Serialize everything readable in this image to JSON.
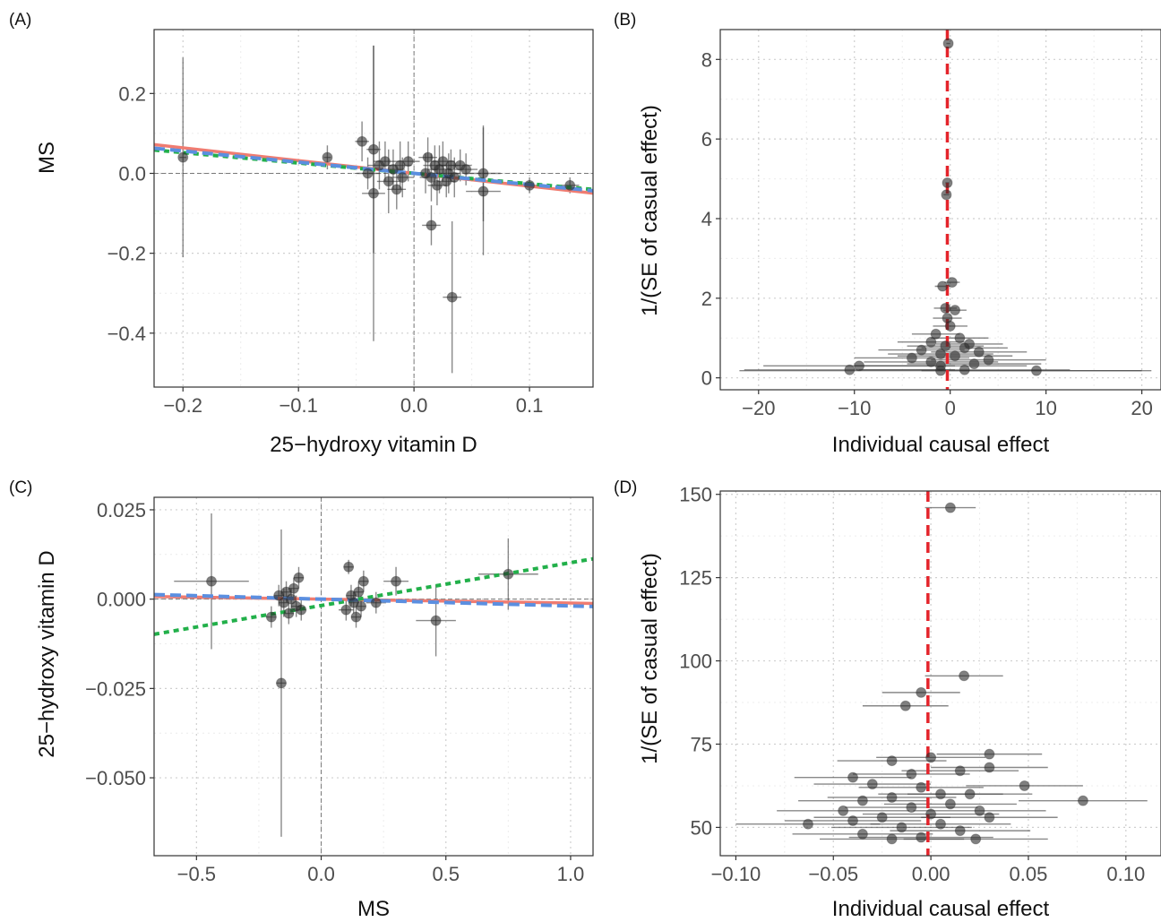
{
  "chart_data": [
    {
      "panel": "(A)",
      "type": "scatter",
      "xlabel": "25−hydroxy vitamin D",
      "ylabel": "MS",
      "xlim": [
        -0.225,
        0.155
      ],
      "ylim": [
        -0.535,
        0.36
      ],
      "xticks": [
        -0.2,
        -0.1,
        0.0,
        0.1
      ],
      "xtick_labels": [
        "−0.2",
        "−0.1",
        "0.0",
        "0.1"
      ],
      "yticks": [
        -0.4,
        -0.2,
        0.0,
        0.2
      ],
      "ytick_labels": [
        "−0.4",
        "−0.2",
        "0.0",
        "0.2"
      ],
      "grid": true,
      "zero_lines": true,
      "lines": [
        {
          "color": "#f07c71",
          "dash": "solid",
          "slope": -0.32
        },
        {
          "color": "#22b04a",
          "dash": "dotted",
          "slope": -0.26
        },
        {
          "color": "#5b8fe0",
          "dash": "dashed",
          "slope": -0.28
        }
      ],
      "points": [
        {
          "x": -0.2,
          "y": 0.04,
          "xerr": 0.003,
          "yerr": 0.25
        },
        {
          "x": -0.075,
          "y": 0.04,
          "xerr": 0.003,
          "yerr": 0.03
        },
        {
          "x": -0.045,
          "y": 0.08,
          "xerr": 0.006,
          "yerr": 0.05
        },
        {
          "x": -0.04,
          "y": 0.0,
          "xerr": 0.01,
          "yerr": 0.04
        },
        {
          "x": -0.035,
          "y": -0.05,
          "xerr": 0.01,
          "yerr": 0.37
        },
        {
          "x": -0.035,
          "y": 0.06,
          "xerr": 0.006,
          "yerr": 0.26
        },
        {
          "x": -0.03,
          "y": 0.02,
          "xerr": 0.01,
          "yerr": 0.06
        },
        {
          "x": -0.025,
          "y": 0.03,
          "xerr": 0.01,
          "yerr": 0.05
        },
        {
          "x": -0.022,
          "y": -0.02,
          "xerr": 0.01,
          "yerr": 0.08
        },
        {
          "x": -0.018,
          "y": 0.01,
          "xerr": 0.01,
          "yerr": 0.05
        },
        {
          "x": -0.015,
          "y": -0.04,
          "xerr": 0.008,
          "yerr": 0.05
        },
        {
          "x": -0.012,
          "y": 0.02,
          "xerr": 0.01,
          "yerr": 0.06
        },
        {
          "x": -0.01,
          "y": -0.01,
          "xerr": 0.01,
          "yerr": 0.05
        },
        {
          "x": -0.005,
          "y": 0.03,
          "xerr": 0.01,
          "yerr": 0.05
        },
        {
          "x": 0.01,
          "y": 0.0,
          "xerr": 0.01,
          "yerr": 0.05
        },
        {
          "x": 0.012,
          "y": 0.04,
          "xerr": 0.008,
          "yerr": 0.05
        },
        {
          "x": 0.015,
          "y": -0.01,
          "xerr": 0.01,
          "yerr": 0.06
        },
        {
          "x": 0.018,
          "y": 0.02,
          "xerr": 0.01,
          "yerr": 0.05
        },
        {
          "x": 0.02,
          "y": -0.03,
          "xerr": 0.008,
          "yerr": 0.05
        },
        {
          "x": 0.022,
          "y": 0.01,
          "xerr": 0.01,
          "yerr": 0.06
        },
        {
          "x": 0.025,
          "y": 0.03,
          "xerr": 0.01,
          "yerr": 0.05
        },
        {
          "x": 0.028,
          "y": -0.02,
          "xerr": 0.008,
          "yerr": 0.04
        },
        {
          "x": 0.03,
          "y": 0.0,
          "xerr": 0.01,
          "yerr": 0.05
        },
        {
          "x": 0.032,
          "y": 0.02,
          "xerr": 0.008,
          "yerr": 0.04
        },
        {
          "x": 0.033,
          "y": -0.31,
          "xerr": 0.008,
          "yerr": 0.19
        },
        {
          "x": 0.035,
          "y": -0.01,
          "xerr": 0.01,
          "yerr": 0.05
        },
        {
          "x": 0.04,
          "y": 0.02,
          "xerr": 0.01,
          "yerr": 0.04
        },
        {
          "x": 0.045,
          "y": 0.01,
          "xerr": 0.01,
          "yerr": 0.04
        },
        {
          "x": 0.015,
          "y": -0.13,
          "xerr": 0.008,
          "yerr": 0.05
        },
        {
          "x": 0.06,
          "y": 0.0,
          "xerr": 0.015,
          "yerr": 0.12
        },
        {
          "x": 0.06,
          "y": -0.045,
          "xerr": 0.015,
          "yerr": 0.16
        },
        {
          "x": 0.1,
          "y": -0.03,
          "xerr": 0.008,
          "yerr": 0.02
        },
        {
          "x": 0.135,
          "y": -0.03,
          "xerr": 0.008,
          "yerr": 0.02
        }
      ]
    },
    {
      "panel": "(B)",
      "type": "scatter",
      "xlabel": "Individual causal effect",
      "ylabel": "1/(SE of casual effect)",
      "xlim": [
        -24,
        22
      ],
      "ylim": [
        -0.3,
        8.75
      ],
      "xticks": [
        -20,
        -10,
        0,
        10,
        20
      ],
      "xtick_labels": [
        "−20",
        "−10",
        "0",
        "10",
        "20"
      ],
      "yticks": [
        0,
        2,
        4,
        6,
        8
      ],
      "ytick_labels": [
        "0",
        "2",
        "4",
        "6",
        "8"
      ],
      "grid": true,
      "vline": {
        "x": -0.3,
        "color": "#e4242b",
        "dash": "dashed"
      },
      "points": [
        {
          "x": -0.2,
          "y": 8.4,
          "xerr": 0.2
        },
        {
          "x": -0.3,
          "y": 4.9,
          "xerr": 0.2
        },
        {
          "x": -0.4,
          "y": 4.6,
          "xerr": 0.3
        },
        {
          "x": 0.2,
          "y": 2.4,
          "xerr": 0.8
        },
        {
          "x": -0.8,
          "y": 2.3,
          "xerr": 0.8
        },
        {
          "x": -0.5,
          "y": 1.75,
          "xerr": 1.2
        },
        {
          "x": 0.5,
          "y": 1.7,
          "xerr": 1.2
        },
        {
          "x": -0.3,
          "y": 1.5,
          "xerr": 1.5
        },
        {
          "x": 0.0,
          "y": 1.3,
          "xerr": 1.8
        },
        {
          "x": -1.5,
          "y": 1.1,
          "xerr": 2.5
        },
        {
          "x": 1.0,
          "y": 1.0,
          "xerr": 3.0
        },
        {
          "x": -2.0,
          "y": 0.9,
          "xerr": 3.5
        },
        {
          "x": 2.0,
          "y": 0.85,
          "xerr": 3.5
        },
        {
          "x": -0.5,
          "y": 0.8,
          "xerr": 4.0
        },
        {
          "x": 1.5,
          "y": 0.75,
          "xerr": 4.5
        },
        {
          "x": -3.0,
          "y": 0.7,
          "xerr": 4.5
        },
        {
          "x": 3.0,
          "y": 0.65,
          "xerr": 5.0
        },
        {
          "x": -1.0,
          "y": 0.6,
          "xerr": 5.5
        },
        {
          "x": 0.5,
          "y": 0.55,
          "xerr": 6.0
        },
        {
          "x": -4.0,
          "y": 0.5,
          "xerr": 6.0
        },
        {
          "x": 4.0,
          "y": 0.45,
          "xerr": 6.0
        },
        {
          "x": -2.0,
          "y": 0.4,
          "xerr": 7.0
        },
        {
          "x": 2.5,
          "y": 0.35,
          "xerr": 7.0
        },
        {
          "x": -1.0,
          "y": 0.3,
          "xerr": 9.0
        },
        {
          "x": -9.5,
          "y": 0.3,
          "xerr": 10.0
        },
        {
          "x": -10.5,
          "y": 0.2,
          "xerr": 11.0
        },
        {
          "x": 1.5,
          "y": 0.2,
          "xerr": 11.0
        },
        {
          "x": 9.0,
          "y": 0.18,
          "xerr": 12.0
        },
        {
          "x": -1.0,
          "y": 0.18,
          "xerr": 21.0
        }
      ]
    },
    {
      "panel": "(C)",
      "type": "scatter",
      "xlabel": "MS",
      "ylabel": "25−hydroxy vitamin D",
      "xlim": [
        -0.67,
        1.09
      ],
      "ylim": [
        -0.0718,
        0.0285
      ],
      "xticks": [
        -0.5,
        0.0,
        0.5,
        1.0
      ],
      "xtick_labels": [
        "−0.5",
        "0.0",
        "0.5",
        "1.0"
      ],
      "yticks": [
        -0.05,
        -0.025,
        0.0,
        0.025
      ],
      "ytick_labels": [
        "−0.050",
        "−0.025",
        "0.000",
        "0.025"
      ],
      "grid": true,
      "zero_lines": true,
      "lines": [
        {
          "color": "#f07c71",
          "dash": "solid",
          "slope": -0.0011,
          "intercept": 0.0
        },
        {
          "color": "#22b04a",
          "dash": "dotted",
          "slope": 0.012,
          "intercept": -0.0018
        },
        {
          "color": "#5b8fe0",
          "dash": "dashed",
          "slope": -0.0019,
          "intercept": 0.0
        }
      ],
      "points": [
        {
          "x": -0.44,
          "y": 0.005,
          "xerr": 0.15,
          "yerr": 0.019
        },
        {
          "x": -0.2,
          "y": -0.005,
          "xerr": 0.02,
          "yerr": 0.003
        },
        {
          "x": -0.17,
          "y": 0.001,
          "xerr": 0.02,
          "yerr": 0.003
        },
        {
          "x": -0.16,
          "y": -0.0235,
          "xerr": 0.02,
          "yerr": 0.043
        },
        {
          "x": -0.15,
          "y": -0.001,
          "xerr": 0.02,
          "yerr": 0.004
        },
        {
          "x": -0.14,
          "y": 0.002,
          "xerr": 0.02,
          "yerr": 0.003
        },
        {
          "x": -0.13,
          "y": -0.004,
          "xerr": 0.02,
          "yerr": 0.003
        },
        {
          "x": -0.12,
          "y": 0.0,
          "xerr": 0.02,
          "yerr": 0.003
        },
        {
          "x": -0.11,
          "y": 0.003,
          "xerr": 0.02,
          "yerr": 0.003
        },
        {
          "x": -0.1,
          "y": -0.002,
          "xerr": 0.02,
          "yerr": 0.003
        },
        {
          "x": -0.09,
          "y": 0.006,
          "xerr": 0.02,
          "yerr": 0.003
        },
        {
          "x": -0.08,
          "y": -0.003,
          "xerr": 0.02,
          "yerr": 0.003
        },
        {
          "x": 0.1,
          "y": -0.003,
          "xerr": 0.03,
          "yerr": 0.003
        },
        {
          "x": 0.11,
          "y": 0.009,
          "xerr": 0.02,
          "yerr": 0.002
        },
        {
          "x": 0.12,
          "y": 0.001,
          "xerr": 0.02,
          "yerr": 0.003
        },
        {
          "x": 0.13,
          "y": -0.001,
          "xerr": 0.02,
          "yerr": 0.003
        },
        {
          "x": 0.14,
          "y": -0.005,
          "xerr": 0.02,
          "yerr": 0.003
        },
        {
          "x": 0.15,
          "y": 0.002,
          "xerr": 0.02,
          "yerr": 0.003
        },
        {
          "x": 0.16,
          "y": -0.002,
          "xerr": 0.02,
          "yerr": 0.003
        },
        {
          "x": 0.17,
          "y": 0.005,
          "xerr": 0.02,
          "yerr": 0.003
        },
        {
          "x": 0.22,
          "y": -0.001,
          "xerr": 0.04,
          "yerr": 0.003
        },
        {
          "x": 0.3,
          "y": 0.005,
          "xerr": 0.05,
          "yerr": 0.004
        },
        {
          "x": 0.46,
          "y": -0.006,
          "xerr": 0.08,
          "yerr": 0.01
        },
        {
          "x": 0.75,
          "y": 0.007,
          "xerr": 0.12,
          "yerr": 0.01
        }
      ]
    },
    {
      "panel": "(D)",
      "type": "scatter",
      "xlabel": "Individual causal effect",
      "ylabel": "1/(SE of casual effect)",
      "xlim": [
        -0.108,
        0.118
      ],
      "ylim": [
        41.5,
        151
      ],
      "xticks": [
        -0.1,
        -0.05,
        0.0,
        0.05,
        0.1
      ],
      "xtick_labels": [
        "−0.10",
        "−0.05",
        "0.00",
        "0.05",
        "0.10"
      ],
      "yticks": [
        50,
        75,
        100,
        125,
        150
      ],
      "ytick_labels": [
        "50",
        "75",
        "100",
        "125",
        "150"
      ],
      "grid": true,
      "vline": {
        "x": -0.0015,
        "color": "#e4242b",
        "dash": "dashed"
      },
      "points": [
        {
          "x": 0.01,
          "y": 146,
          "xerr": 0.013
        },
        {
          "x": 0.017,
          "y": 95.5,
          "xerr": 0.02
        },
        {
          "x": -0.005,
          "y": 90.5,
          "xerr": 0.02
        },
        {
          "x": -0.013,
          "y": 86.5,
          "xerr": 0.022
        },
        {
          "x": 0.03,
          "y": 72,
          "xerr": 0.027
        },
        {
          "x": 0.0,
          "y": 71,
          "xerr": 0.028
        },
        {
          "x": -0.02,
          "y": 70,
          "xerr": 0.028
        },
        {
          "x": 0.015,
          "y": 67,
          "xerr": 0.03
        },
        {
          "x": 0.03,
          "y": 68,
          "xerr": 0.03
        },
        {
          "x": -0.04,
          "y": 65,
          "xerr": 0.03
        },
        {
          "x": -0.01,
          "y": 66,
          "xerr": 0.03
        },
        {
          "x": 0.048,
          "y": 62.5,
          "xerr": 0.03
        },
        {
          "x": -0.03,
          "y": 63,
          "xerr": 0.03
        },
        {
          "x": -0.005,
          "y": 62,
          "xerr": 0.032
        },
        {
          "x": 0.005,
          "y": 60,
          "xerr": 0.032
        },
        {
          "x": 0.02,
          "y": 60,
          "xerr": 0.032
        },
        {
          "x": -0.02,
          "y": 59,
          "xerr": 0.033
        },
        {
          "x": 0.078,
          "y": 58,
          "xerr": 0.033
        },
        {
          "x": -0.035,
          "y": 58,
          "xerr": 0.033
        },
        {
          "x": 0.01,
          "y": 57,
          "xerr": 0.034
        },
        {
          "x": -0.01,
          "y": 56,
          "xerr": 0.034
        },
        {
          "x": -0.045,
          "y": 55,
          "xerr": 0.034
        },
        {
          "x": 0.025,
          "y": 55,
          "xerr": 0.034
        },
        {
          "x": 0.0,
          "y": 54,
          "xerr": 0.035
        },
        {
          "x": -0.025,
          "y": 53,
          "xerr": 0.035
        },
        {
          "x": 0.03,
          "y": 53,
          "xerr": 0.035
        },
        {
          "x": -0.04,
          "y": 52,
          "xerr": 0.035
        },
        {
          "x": -0.063,
          "y": 51,
          "xerr": 0.037
        },
        {
          "x": 0.005,
          "y": 51,
          "xerr": 0.036
        },
        {
          "x": -0.015,
          "y": 50,
          "xerr": 0.036
        },
        {
          "x": 0.015,
          "y": 49,
          "xerr": 0.036
        },
        {
          "x": -0.035,
          "y": 48,
          "xerr": 0.036
        },
        {
          "x": -0.005,
          "y": 47,
          "xerr": 0.037
        },
        {
          "x": 0.023,
          "y": 46.5,
          "xerr": 0.037
        },
        {
          "x": -0.02,
          "y": 46.5,
          "xerr": 0.037
        }
      ]
    }
  ]
}
